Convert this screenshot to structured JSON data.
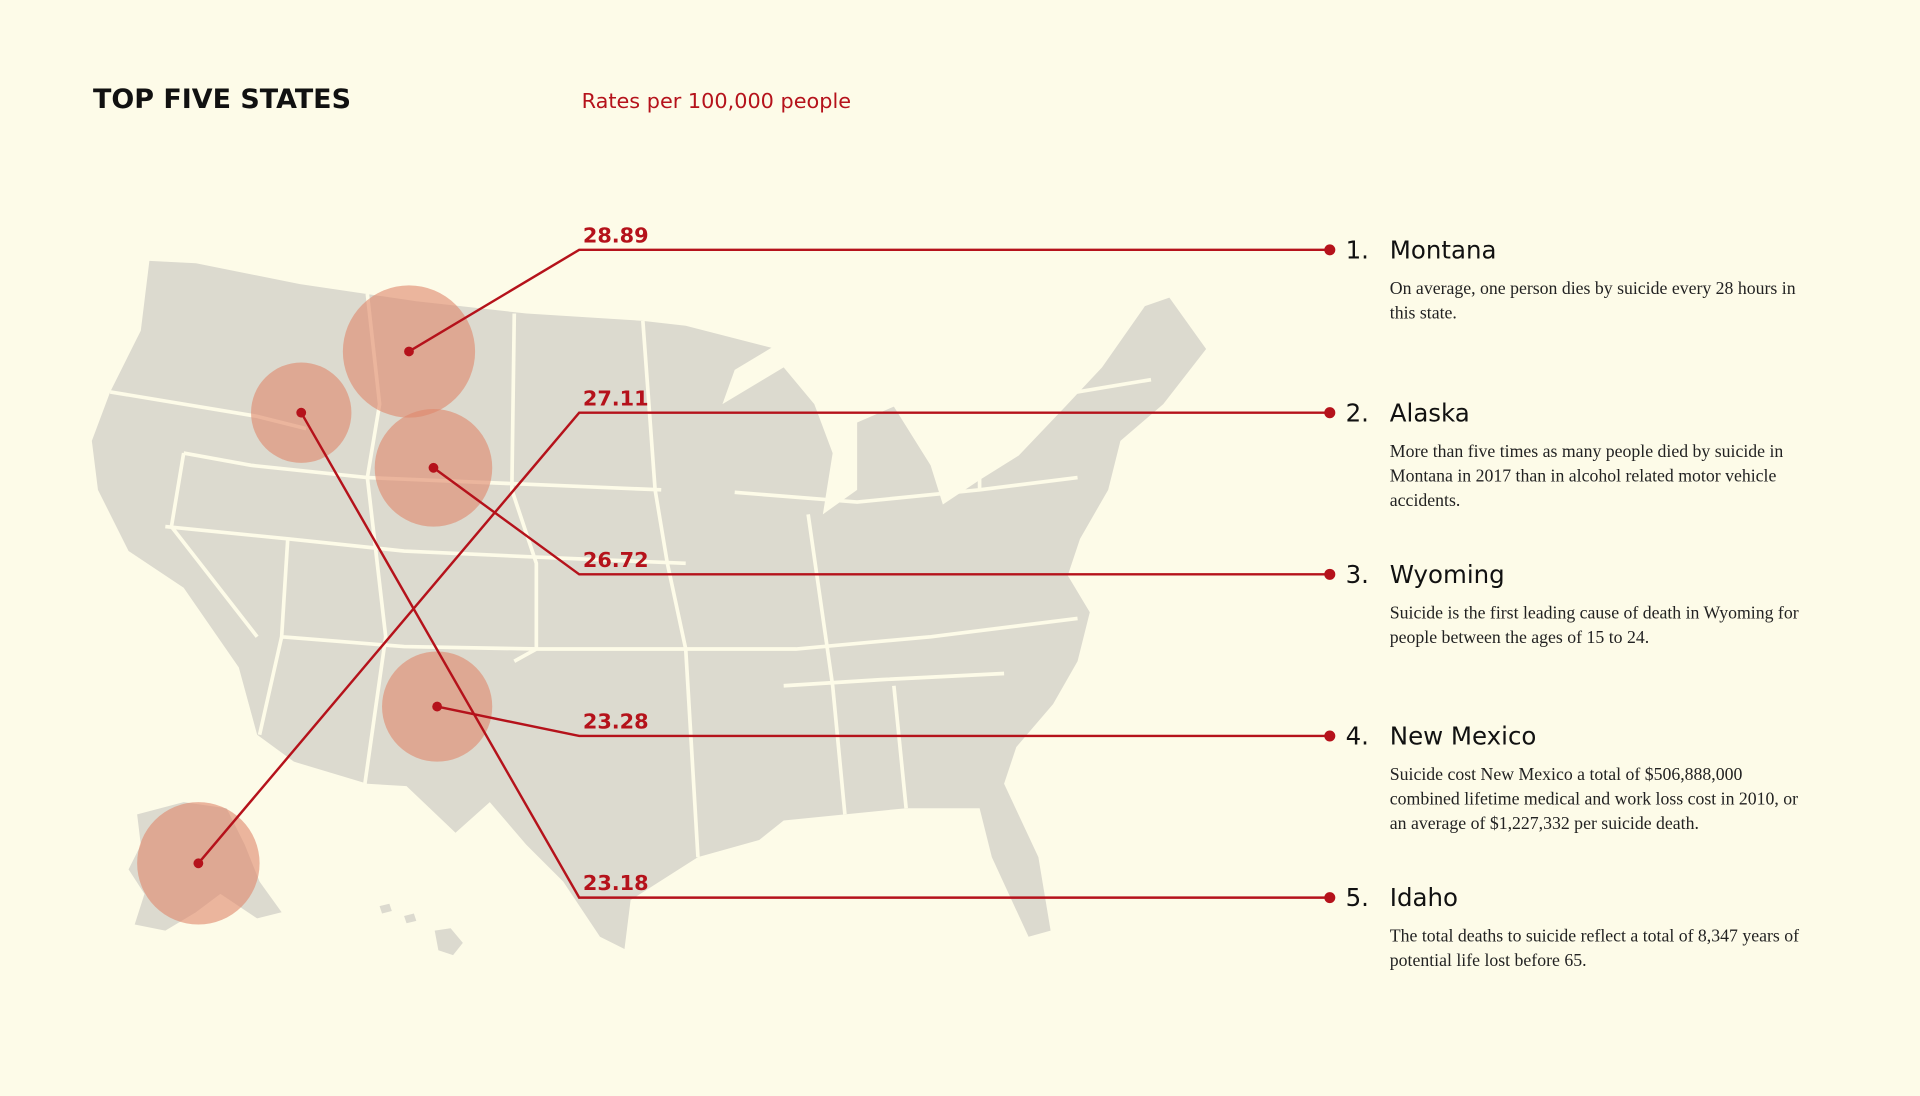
{
  "header": {
    "title": "TOP FIVE STATES",
    "subtitle": "Rates per 100,000 people"
  },
  "states": [
    {
      "rank": "1.",
      "name": "Montana",
      "rate": 28.89,
      "description": "On average, one person dies by suicide every 28 hours in this state."
    },
    {
      "rank": "2.",
      "name": "Alaska",
      "rate": 27.11,
      "description": "More than five times as many people died by suicide in Montana in 2017 than in alcohol related motor vehicle accidents."
    },
    {
      "rank": "3.",
      "name": "Wyoming",
      "rate": 26.72,
      "description": "Suicide is the first leading cause of death in Wyoming for people between the ages of 15 to 24."
    },
    {
      "rank": "4.",
      "name": "New Mexico",
      "rate": 23.28,
      "description": "Suicide cost New Mexico a total of $506,888,000 combined lifetime medical and work loss cost in 2010, or an average of $1,227,332 per suicide death."
    },
    {
      "rank": "5.",
      "name": "Idaho",
      "rate": 23.18,
      "description": "The total deaths to suicide reflect a total of 8,347 years of potential life lost before 65."
    }
  ]
}
